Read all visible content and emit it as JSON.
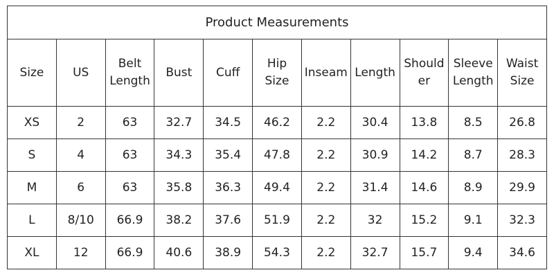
{
  "table": {
    "title": "Product Measurements",
    "columns": [
      "Size",
      "US",
      "Belt Length",
      "Bust",
      "Cuff",
      "Hip Size",
      "Inseam",
      "Length",
      "Shoulder",
      "Sleeve Length",
      "Waist Size"
    ],
    "rows": [
      [
        "XS",
        2,
        63,
        32.7,
        34.5,
        46.2,
        2.2,
        30.4,
        13.8,
        8.5,
        26.8
      ],
      [
        "S",
        4,
        63,
        34.3,
        35.4,
        47.8,
        2.2,
        30.9,
        14.2,
        8.7,
        28.3
      ],
      [
        "M",
        6,
        63,
        35.8,
        36.3,
        49.4,
        2.2,
        31.4,
        14.6,
        8.9,
        29.9
      ],
      [
        "L",
        "8/10",
        66.9,
        38.2,
        37.6,
        51.9,
        2.2,
        32,
        15.2,
        9.1,
        32.3
      ],
      [
        "XL",
        12,
        66.9,
        40.6,
        38.9,
        54.3,
        2.2,
        32.7,
        15.7,
        9.4,
        34.6
      ]
    ]
  }
}
